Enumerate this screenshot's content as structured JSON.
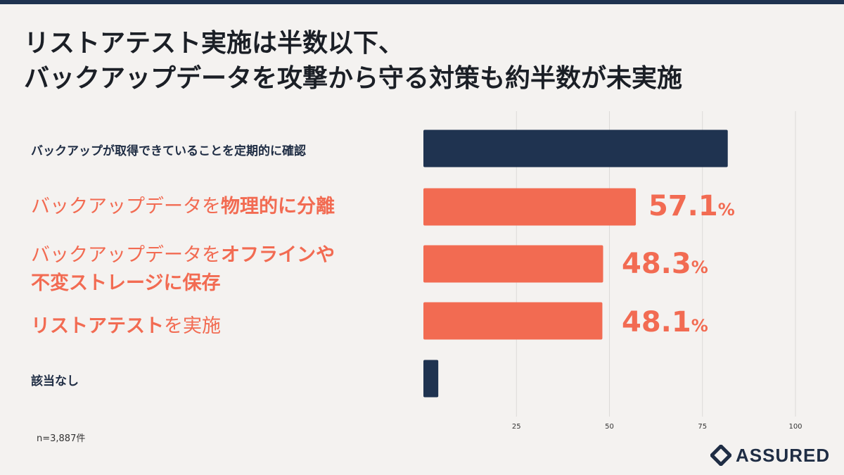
{
  "title": {
    "line1": "リストアテスト実施は半数以下、",
    "line2": "バックアップデータを攻撃から守る対策も約半数が未実施"
  },
  "chart_data": {
    "type": "bar",
    "orientation": "horizontal",
    "categories": [
      "バックアップが取得できていることを定期的に確認",
      "バックアップデータを物理的に分離",
      "バックアップデータをオフラインや不変ストレージに保存",
      "リストアテストを実施",
      "該当なし"
    ],
    "values": [
      81.8,
      57.1,
      48.3,
      48.1,
      4.0
    ],
    "value_labels": [
      "",
      "57.1",
      "48.3",
      "48.1",
      ""
    ],
    "value_suffix": "%",
    "xlim": [
      0,
      100
    ],
    "x_ticks": [
      25,
      50,
      75,
      100
    ],
    "grid": true,
    "colors": {
      "dark": "#1f3350",
      "highlight": "#f26b52"
    },
    "bar_colors": [
      "dark",
      "highlight",
      "highlight",
      "highlight",
      "dark"
    ]
  },
  "labels": {
    "cat1": "バックアップが取得できていることを定期的に確認",
    "cat2_plain": "バックアップデータを",
    "cat2_bold": "物理的に分離",
    "cat3_plain": "バックアップデータを",
    "cat3_bold": "オフラインや",
    "cat3_bold2": "不変ストレージに保存",
    "cat4_bold": "リストアテスト",
    "cat4_plain": "を実施",
    "cat5": "該当なし"
  },
  "note": "n=3,887件",
  "logo": {
    "text": "ASSURED",
    "icon": "assured-diamond-logo-icon"
  }
}
